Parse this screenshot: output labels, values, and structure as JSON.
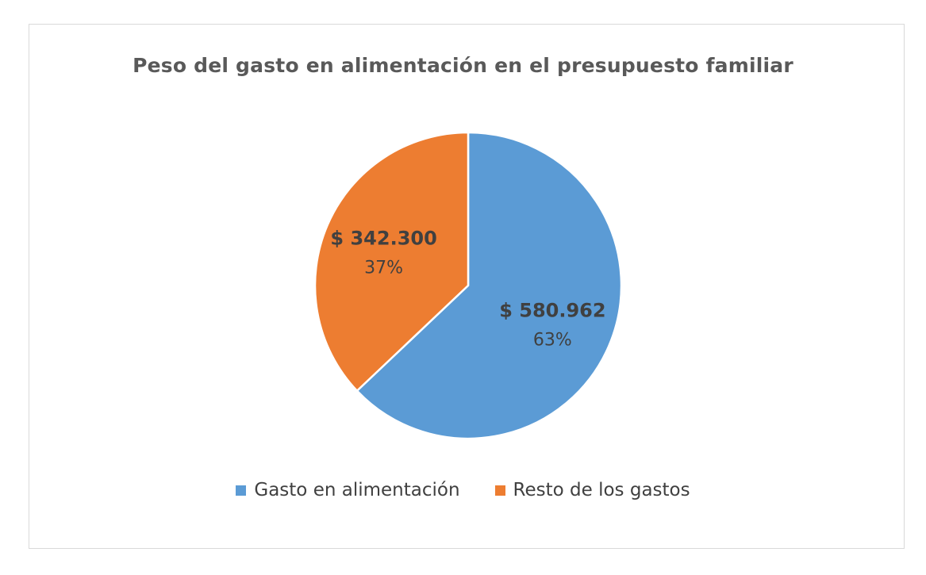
{
  "chart_data": {
    "type": "pie",
    "title": "Peso del gasto en alimentación en el presupuesto familiar",
    "categories": [
      "Gasto en alimentación",
      "Resto de los gastos"
    ],
    "values": [
      580962,
      342300
    ],
    "value_labels": [
      "$ 580.962",
      "$ 342.300"
    ],
    "percent_labels": [
      "63%",
      "37%"
    ],
    "colors": [
      "#5b9bd5",
      "#ed7d31"
    ],
    "legend_position": "bottom"
  }
}
